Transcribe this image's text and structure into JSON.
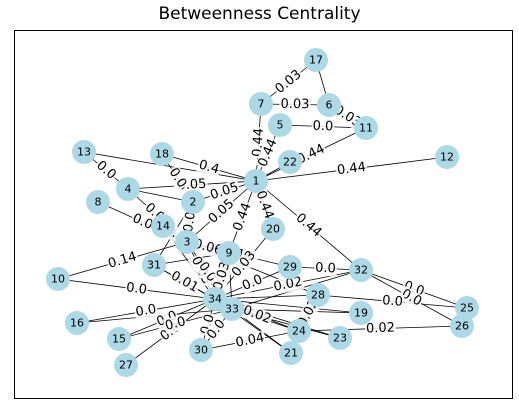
{
  "figure": {
    "title": "Betweenness Centrality"
  },
  "colors": {
    "node_fill": "#add8e6",
    "edge": "#000000",
    "frame": "#000000",
    "label_bg": "#ffffff"
  },
  "nodes": [
    {
      "id": "1"
    },
    {
      "id": "2"
    },
    {
      "id": "3"
    },
    {
      "id": "4"
    },
    {
      "id": "5"
    },
    {
      "id": "6"
    },
    {
      "id": "7"
    },
    {
      "id": "8"
    },
    {
      "id": "9"
    },
    {
      "id": "10"
    },
    {
      "id": "11"
    },
    {
      "id": "12"
    },
    {
      "id": "13"
    },
    {
      "id": "14"
    },
    {
      "id": "15"
    },
    {
      "id": "16"
    },
    {
      "id": "17"
    },
    {
      "id": "18"
    },
    {
      "id": "19"
    },
    {
      "id": "20"
    },
    {
      "id": "21"
    },
    {
      "id": "22"
    },
    {
      "id": "23"
    },
    {
      "id": "24"
    },
    {
      "id": "25"
    },
    {
      "id": "26"
    },
    {
      "id": "27"
    },
    {
      "id": "28"
    },
    {
      "id": "29"
    },
    {
      "id": "30"
    },
    {
      "id": "31"
    },
    {
      "id": "32"
    },
    {
      "id": "33"
    },
    {
      "id": "34"
    }
  ],
  "edges": [
    {
      "source": "7",
      "target": "17",
      "label": "0.03"
    },
    {
      "source": "7",
      "target": "6",
      "label": "0.03"
    },
    {
      "source": "17",
      "target": "6",
      "label": ""
    },
    {
      "source": "6",
      "target": "11",
      "label": "0.03"
    },
    {
      "source": "5",
      "target": "11",
      "label": "0.0"
    },
    {
      "source": "7",
      "target": "1",
      "label": "0.44"
    },
    {
      "source": "5",
      "target": "1",
      "label": "0.44"
    },
    {
      "source": "11",
      "target": "1",
      "label": "0.44"
    },
    {
      "source": "1",
      "target": "12",
      "label": "0.44"
    },
    {
      "source": "1",
      "target": "22",
      "label": ""
    },
    {
      "source": "1",
      "target": "2",
      "label": "0.05"
    },
    {
      "source": "1",
      "target": "3",
      "label": "0.05"
    },
    {
      "source": "1",
      "target": "18",
      "label": "0.4"
    },
    {
      "source": "1",
      "target": "20",
      "label": "0.44"
    },
    {
      "source": "1",
      "target": "32",
      "label": "0.44"
    },
    {
      "source": "1",
      "target": "9",
      "label": "0.44"
    },
    {
      "source": "13",
      "target": "1",
      "label": ""
    },
    {
      "source": "4",
      "target": "1",
      "label": "0.05"
    },
    {
      "source": "4",
      "target": "13",
      "label": "0.0"
    },
    {
      "source": "4",
      "target": "2",
      "label": ""
    },
    {
      "source": "4",
      "target": "3",
      "label": "0.01"
    },
    {
      "source": "8",
      "target": "3",
      "label": "0.0"
    },
    {
      "source": "14",
      "target": "3",
      "label": "0.5"
    },
    {
      "source": "18",
      "target": "2",
      "label": "0.0"
    },
    {
      "source": "2",
      "target": "3",
      "label": "0.0"
    },
    {
      "source": "2",
      "target": "31",
      "label": ""
    },
    {
      "source": "3",
      "target": "9",
      "label": "0.06"
    },
    {
      "source": "3",
      "target": "34",
      "label": "0.05"
    },
    {
      "source": "3",
      "target": "33",
      "label": "0.01"
    },
    {
      "source": "3",
      "target": "10",
      "label": "0.14"
    },
    {
      "source": "3",
      "target": "29",
      "label": "0.14"
    },
    {
      "source": "3",
      "target": "28",
      "label": ""
    },
    {
      "source": "9",
      "target": "34",
      "label": "0.03"
    },
    {
      "source": "9",
      "target": "33",
      "label": ""
    },
    {
      "source": "9",
      "target": "31",
      "label": ""
    },
    {
      "source": "20",
      "target": "34",
      "label": "0.03"
    },
    {
      "source": "14",
      "target": "34",
      "label": ""
    },
    {
      "source": "31",
      "target": "34",
      "label": "0.01"
    },
    {
      "source": "10",
      "target": "34",
      "label": "0.0"
    },
    {
      "source": "16",
      "target": "34",
      "label": "0.0"
    },
    {
      "source": "15",
      "target": "34",
      "label": "0.0"
    },
    {
      "source": "27",
      "target": "34",
      "label": "0.0"
    },
    {
      "source": "30",
      "target": "34",
      "label": "0.0"
    },
    {
      "source": "30",
      "target": "24",
      "label": "0.04"
    },
    {
      "source": "21",
      "target": "34",
      "label": ""
    },
    {
      "source": "19",
      "target": "34",
      "label": ""
    },
    {
      "source": "23",
      "target": "34",
      "label": ""
    },
    {
      "source": "24",
      "target": "34",
      "label": "0.02"
    },
    {
      "source": "29",
      "target": "34",
      "label": "0.0"
    },
    {
      "source": "28",
      "target": "34",
      "label": ""
    },
    {
      "source": "32",
      "target": "34",
      "label": "0.02"
    },
    {
      "source": "32",
      "target": "29",
      "label": "0.0"
    },
    {
      "source": "32",
      "target": "33",
      "label": ""
    },
    {
      "source": "32",
      "target": "25",
      "label": "0.0"
    },
    {
      "source": "32",
      "target": "26",
      "label": "0.0"
    },
    {
      "source": "28",
      "target": "25",
      "label": "0.0"
    },
    {
      "source": "24",
      "target": "28",
      "label": "0.02"
    },
    {
      "source": "24",
      "target": "26",
      "label": "0.02"
    },
    {
      "source": "25",
      "target": "26",
      "label": ""
    },
    {
      "source": "33",
      "target": "19",
      "label": ""
    },
    {
      "source": "33",
      "target": "23",
      "label": ""
    },
    {
      "source": "33",
      "target": "21",
      "label": ""
    },
    {
      "source": "33",
      "target": "30",
      "label": "0.0"
    },
    {
      "source": "33",
      "target": "15",
      "label": "0.0"
    },
    {
      "source": "33",
      "target": "16",
      "label": ""
    },
    {
      "source": "33",
      "target": "31",
      "label": ""
    },
    {
      "source": "33",
      "target": "24",
      "label": ""
    },
    {
      "source": "34",
      "target": "33",
      "label": ""
    }
  ]
}
